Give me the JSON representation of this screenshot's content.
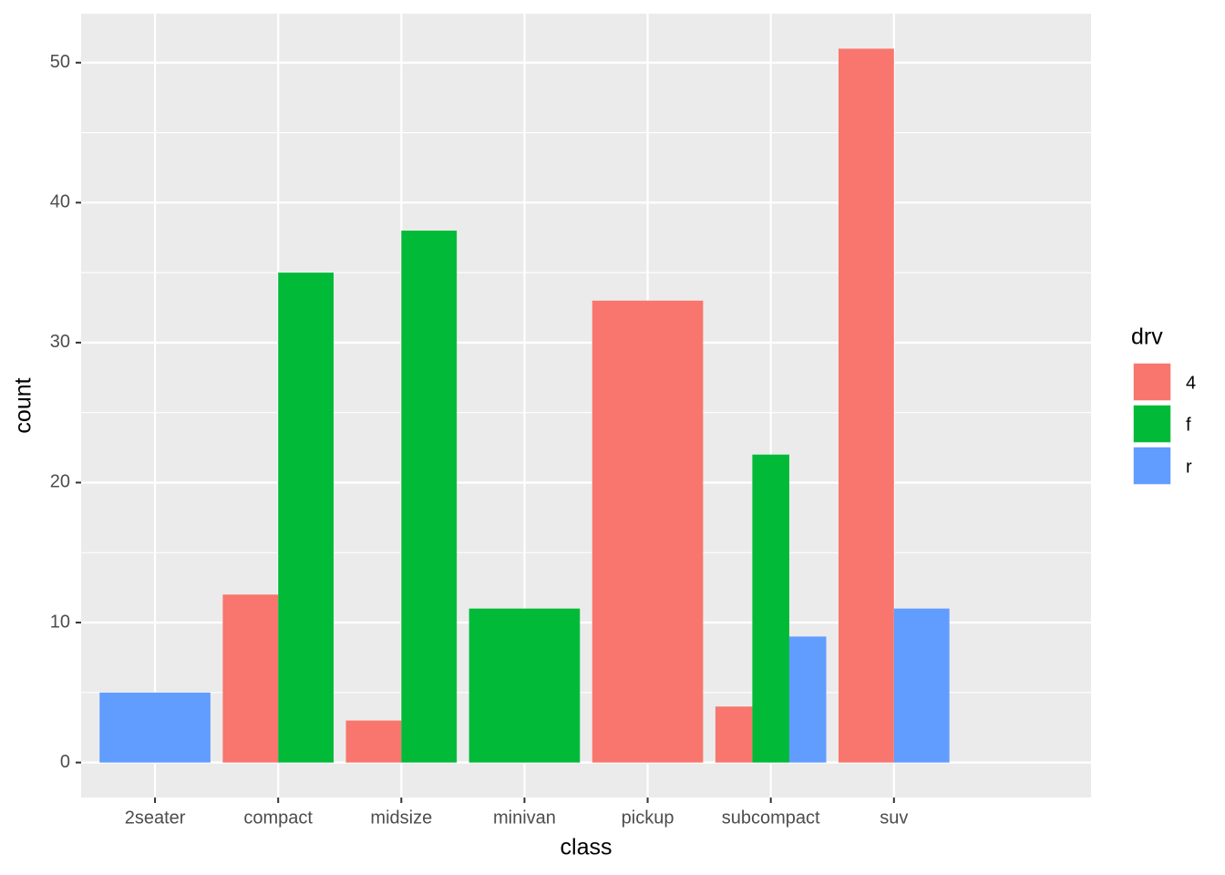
{
  "chart_data": {
    "type": "bar",
    "x_label": "class",
    "y_label": "count",
    "legend_title": "drv",
    "categories": [
      "2seater",
      "compact",
      "midsize",
      "minivan",
      "pickup",
      "subcompact",
      "suv"
    ],
    "series": [
      {
        "name": "4",
        "color": "#f8766d",
        "values": [
          null,
          12,
          3,
          null,
          33,
          4,
          51
        ]
      },
      {
        "name": "f",
        "color": "#00ba38",
        "values": [
          null,
          35,
          38,
          11,
          null,
          22,
          null
        ]
      },
      {
        "name": "r",
        "color": "#619cff",
        "values": [
          5,
          null,
          null,
          null,
          null,
          9,
          11
        ]
      }
    ],
    "ylim": [
      -2.5,
      53.5
    ],
    "yticks": [
      0,
      10,
      20,
      30,
      40,
      50
    ],
    "grid": true,
    "legend_position": "right"
  }
}
